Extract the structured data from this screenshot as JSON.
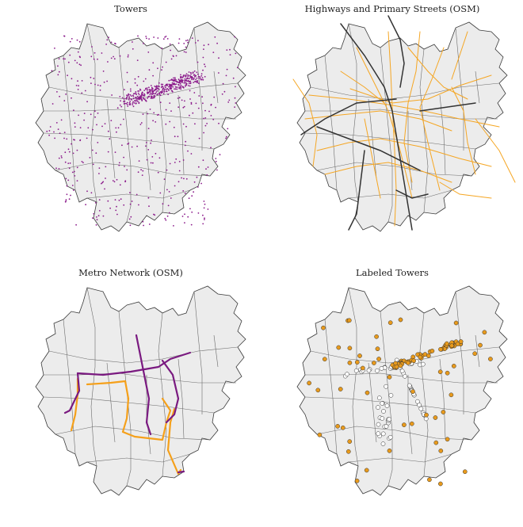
{
  "panels": [
    {
      "title": "Towers",
      "layer": "towers"
    },
    {
      "title": "Highways and Primary Streets (OSM)",
      "layer": "streets"
    },
    {
      "title": "Metro Network (OSM)",
      "layer": "metro"
    },
    {
      "title": "Labeled Towers",
      "layer": "labeled"
    }
  ],
  "colors": {
    "region_fill": "#ececec",
    "boundary": "#3a3a3a",
    "tower": "#8b1a8b",
    "highway": "#333333",
    "primary_street": "#f5a623",
    "metro_purple": "#7a1a80",
    "metro_orange": "#f5a01a",
    "labeled_positive": "#e89a1c",
    "labeled_negative": "#ffffff"
  },
  "legend": {
    "towers_marker": "purple dots",
    "labeled_marker": "orange filled circles vs white circles"
  }
}
